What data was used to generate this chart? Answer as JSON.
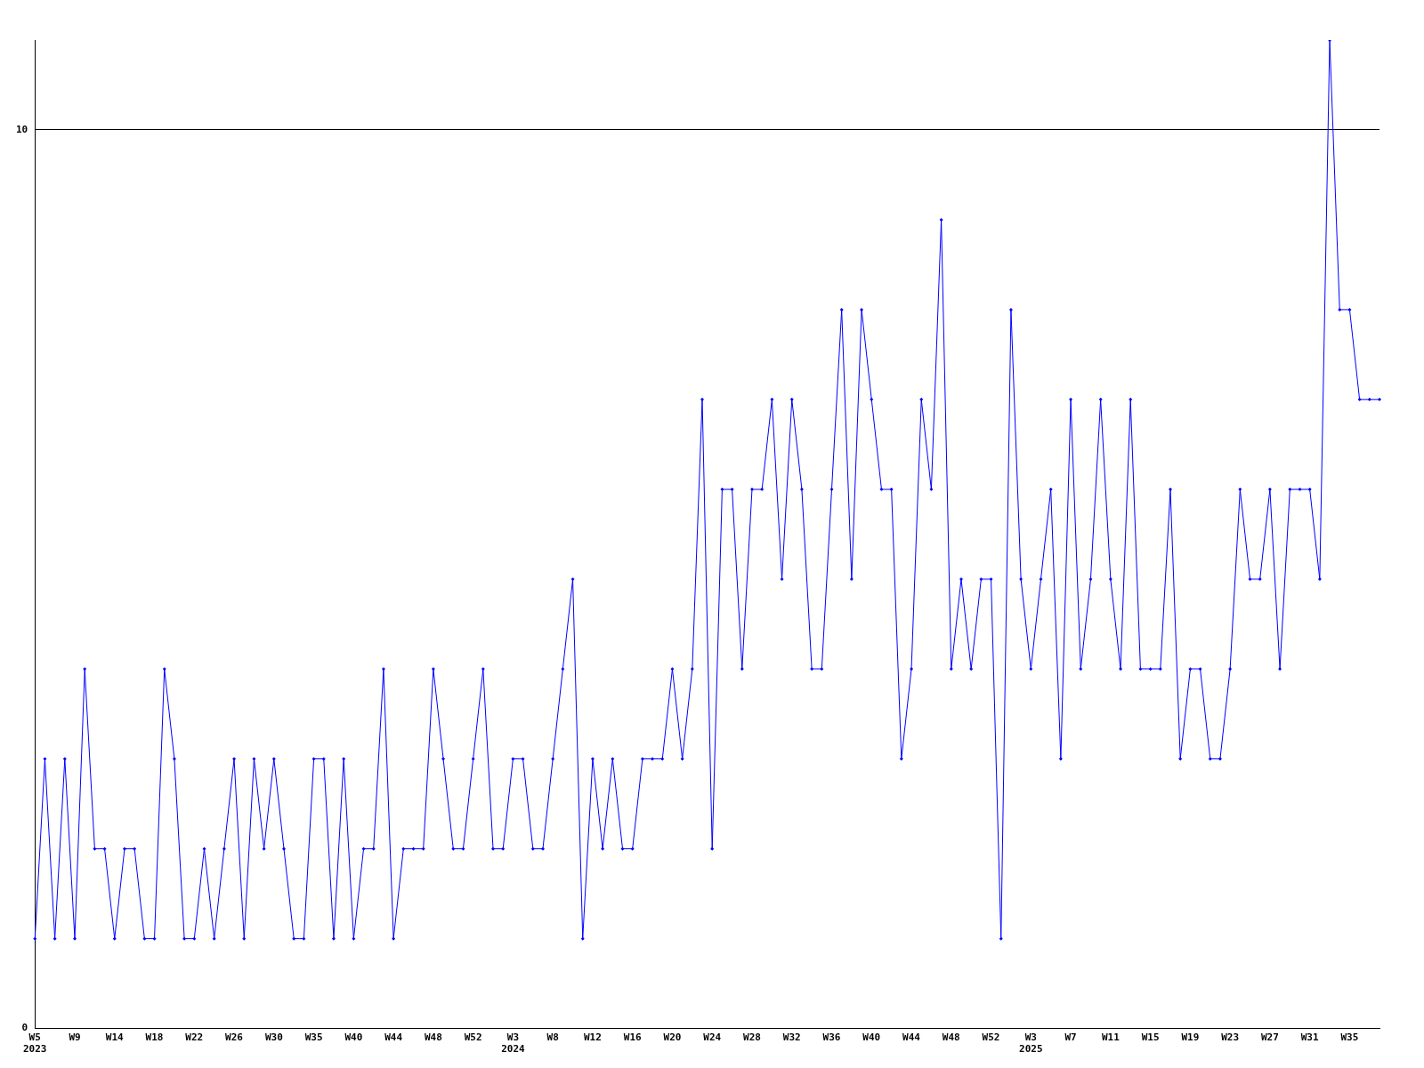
{
  "chart_data": {
    "type": "line",
    "categories": [
      "W5\n2023",
      null,
      null,
      null,
      "W9",
      null,
      null,
      null,
      "W14",
      null,
      null,
      null,
      "W18",
      null,
      null,
      null,
      "W22",
      null,
      null,
      null,
      "W26",
      null,
      null,
      null,
      "W30",
      null,
      null,
      null,
      "W35",
      null,
      null,
      null,
      "W40",
      null,
      null,
      null,
      "W44",
      null,
      null,
      null,
      "W48",
      null,
      null,
      null,
      "W52",
      null,
      null,
      null,
      "W3\n2024",
      null,
      null,
      null,
      "W8",
      null,
      null,
      null,
      "W12",
      null,
      null,
      null,
      "W16",
      null,
      null,
      null,
      "W20",
      null,
      null,
      null,
      "W24",
      null,
      null,
      null,
      "W28",
      null,
      null,
      null,
      "W32",
      null,
      null,
      null,
      "W36",
      null,
      null,
      null,
      "W40",
      null,
      null,
      null,
      "W44",
      null,
      null,
      null,
      "W48",
      null,
      null,
      null,
      "W52",
      null,
      null,
      null,
      "W3\n2025",
      null,
      null,
      null,
      "W7",
      null,
      null,
      null,
      "W11",
      null,
      null,
      null,
      "W15",
      null,
      null,
      null,
      "W19",
      null,
      null,
      null,
      "W23",
      null,
      null,
      null,
      "W27",
      null,
      null,
      null,
      "W31",
      null,
      null,
      null,
      "W35",
      null,
      null,
      null
    ],
    "series": [
      {
        "color": "#0000ff",
        "values": [
          1,
          3,
          1,
          3,
          1,
          4,
          2,
          2,
          1,
          2,
          2,
          1,
          1,
          4,
          3,
          1,
          1,
          2,
          1,
          2,
          3,
          1,
          3,
          2,
          3,
          2,
          1,
          1,
          3,
          3,
          1,
          3,
          1,
          2,
          2,
          4,
          1,
          2,
          2,
          2,
          4,
          3,
          2,
          2,
          3,
          4,
          2,
          2,
          3,
          3,
          2,
          2,
          3,
          4,
          5,
          1,
          3,
          2,
          3,
          2,
          2,
          3,
          3,
          3,
          4,
          3,
          4,
          7,
          2,
          6,
          6,
          4,
          6,
          6,
          7,
          5,
          7,
          6,
          4,
          4,
          6,
          8,
          5,
          8,
          7,
          6,
          6,
          3,
          4,
          7,
          6,
          9,
          4,
          5,
          4,
          5,
          5,
          1,
          8,
          5,
          4,
          5,
          6,
          3,
          7,
          4,
          5,
          7,
          5,
          4,
          7,
          4,
          4,
          4,
          6,
          3,
          4,
          4,
          3,
          3,
          4,
          6,
          5,
          5,
          6,
          4,
          6,
          6,
          6,
          5,
          11,
          8,
          8,
          7,
          7,
          7
        ]
      }
    ],
    "ylim": [
      0,
      11
    ],
    "yticks": [
      0,
      10
    ],
    "grid": "y",
    "legend": false,
    "marker": "diamond",
    "line_style": "solid"
  }
}
